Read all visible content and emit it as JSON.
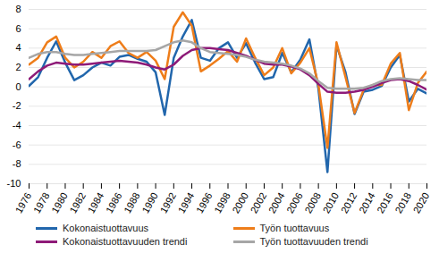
{
  "chart_data": {
    "type": "line",
    "x": [
      1976,
      1977,
      1978,
      1979,
      1980,
      1981,
      1982,
      1983,
      1984,
      1985,
      1986,
      1987,
      1988,
      1989,
      1990,
      1991,
      1992,
      1993,
      1994,
      1995,
      1996,
      1997,
      1998,
      1999,
      2000,
      2001,
      2002,
      2003,
      2004,
      2005,
      2006,
      2007,
      2008,
      2009,
      2010,
      2011,
      2012,
      2013,
      2014,
      2015,
      2016,
      2017,
      2018,
      2019,
      2020
    ],
    "series": [
      {
        "name": "Kokonaistuottavuus",
        "color": "#2166ac",
        "values": [
          0.1,
          1.0,
          3.0,
          4.7,
          2.5,
          0.7,
          1.2,
          2.0,
          2.5,
          2.2,
          3.1,
          3.3,
          2.9,
          2.6,
          1.5,
          -2.9,
          3.0,
          5.2,
          6.9,
          3.0,
          2.7,
          4.0,
          4.6,
          3.0,
          4.5,
          2.5,
          0.8,
          1.0,
          3.5,
          1.5,
          2.8,
          4.9,
          -0.2,
          -8.8,
          4.3,
          1.5,
          -2.8,
          -0.5,
          -0.3,
          0.1,
          2.0,
          3.3,
          -1.5,
          -0.2,
          -0.7
        ]
      },
      {
        "name": "Työn tuottavuus",
        "color": "#ee7d1a",
        "values": [
          2.3,
          3.0,
          4.6,
          5.2,
          3.0,
          2.0,
          2.6,
          3.6,
          3.0,
          4.2,
          4.7,
          3.5,
          3.0,
          3.6,
          2.7,
          0.8,
          6.2,
          7.7,
          6.3,
          1.6,
          2.2,
          2.9,
          3.7,
          2.6,
          5.0,
          3.0,
          1.2,
          2.0,
          4.0,
          1.4,
          2.5,
          4.0,
          0.2,
          -6.3,
          4.6,
          1.0,
          -2.7,
          -0.3,
          0.2,
          0.2,
          2.4,
          3.5,
          -2.4,
          0.4,
          1.6
        ]
      },
      {
        "name": "Kokonaistuottavuuden trendi",
        "color": "#8e1a78",
        "values": [
          0.8,
          1.6,
          2.2,
          2.5,
          2.4,
          2.3,
          2.3,
          2.4,
          2.5,
          2.6,
          2.7,
          2.6,
          2.5,
          2.3,
          2.0,
          1.8,
          2.3,
          3.2,
          3.8,
          4.0,
          4.0,
          3.9,
          3.8,
          3.5,
          3.2,
          2.8,
          2.4,
          2.3,
          2.3,
          2.1,
          1.8,
          1.2,
          0.3,
          -0.5,
          -0.6,
          -0.6,
          -0.5,
          -0.3,
          0.0,
          0.4,
          0.7,
          0.8,
          0.6,
          0.2,
          -0.3
        ]
      },
      {
        "name": "Työn tuottavuuden trendi",
        "color": "#a6a6a6",
        "values": [
          3.0,
          3.4,
          3.6,
          3.6,
          3.4,
          3.3,
          3.3,
          3.4,
          3.5,
          3.6,
          3.7,
          3.7,
          3.7,
          3.7,
          3.8,
          4.2,
          4.6,
          4.8,
          4.6,
          4.0,
          3.6,
          3.5,
          3.4,
          3.3,
          3.1,
          2.8,
          2.6,
          2.5,
          2.4,
          2.2,
          1.9,
          1.4,
          0.6,
          -0.1,
          -0.2,
          -0.2,
          -0.2,
          -0.1,
          0.2,
          0.6,
          0.8,
          0.9,
          0.8,
          0.7,
          0.7
        ]
      }
    ],
    "xlim": [
      1976,
      2020
    ],
    "xticks": [
      1976,
      1978,
      1980,
      1982,
      1984,
      1986,
      1988,
      1990,
      1992,
      1994,
      1996,
      1998,
      2000,
      2002,
      2004,
      2006,
      2008,
      2010,
      2012,
      2014,
      2016,
      2018,
      2020
    ],
    "ylim": [
      -10,
      8
    ],
    "yticks": [
      -10,
      -8,
      -6,
      -4,
      -2,
      0,
      2,
      4,
      6,
      8
    ],
    "grid": true,
    "legend": "bottom"
  }
}
